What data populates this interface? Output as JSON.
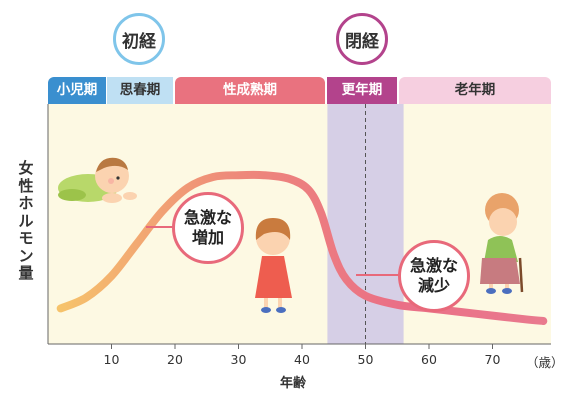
{
  "y_axis_label": "女性ホルモン量",
  "x_axis_label": "年齢",
  "x_unit": "（歳）",
  "stages": [
    {
      "label": "小児期",
      "color": "#3a8fcf",
      "text_color": "#ffffff"
    },
    {
      "label": "思春期",
      "color": "#bfe0f3",
      "text_color": "#333333"
    },
    {
      "label": "性成熟期",
      "color": "#e9727f",
      "text_color": "#ffffff"
    },
    {
      "label": "更年期",
      "color": "#b3438c",
      "text_color": "#ffffff"
    },
    {
      "label": "老年期",
      "color": "#f6cfe0",
      "text_color": "#333333"
    }
  ],
  "markers": {
    "menarche": {
      "label": "初経",
      "color": "#7fc5ea"
    },
    "menopause": {
      "label": "閉経",
      "color": "#b3438c"
    }
  },
  "callouts": {
    "increase": {
      "line1": "急激な",
      "line2": "増加"
    },
    "decrease": {
      "line1": "急激な",
      "line2": "減少"
    }
  },
  "colors": {
    "plot_background": "#fdf9e3",
    "menopause_band": "#d6cfe6",
    "curve_start": "#f6c36b",
    "curve_end": "#ea6f86",
    "callout_border": "#e8697a"
  },
  "chart_data": {
    "type": "line",
    "title": "",
    "xlabel": "年齢",
    "ylabel": "女性ホルモン量",
    "x_ticks": [
      10,
      20,
      30,
      40,
      50,
      60,
      70
    ],
    "x_unit": "（歳）",
    "xlim": [
      0,
      80
    ],
    "ylim": [
      0,
      100
    ],
    "shaded_band": {
      "x": [
        44,
        56
      ],
      "label": "更年期"
    },
    "menopause_x": 50,
    "series": [
      {
        "x": [
          2,
          6,
          10,
          14,
          18,
          22,
          26,
          30,
          34,
          38,
          41,
          43,
          45,
          47,
          50,
          55,
          60,
          65,
          70,
          75,
          78
        ],
        "y": [
          12,
          18,
          30,
          48,
          66,
          79,
          85,
          86,
          86,
          84,
          78,
          65,
          42,
          28,
          19,
          14,
          12,
          10,
          8,
          6,
          5
        ]
      }
    ]
  }
}
